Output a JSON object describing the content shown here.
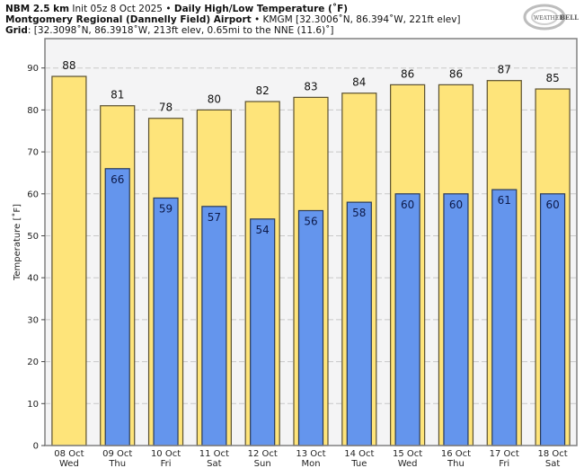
{
  "header": {
    "model": "NBM 2.5 km",
    "init": "Init 05z 8 Oct 2025",
    "sep": " • ",
    "product": "Daily High/Low Temperature (˚F)",
    "station_name": "Montgomery Regional (Dannelly Field) Airport",
    "station_info": "KMGM [32.3006˚N, 86.394˚W, 221ft elev]",
    "grid_label": "Grid",
    "grid_info": ": [32.3098˚N, 86.3918˚W, 213ft elev, 0.65mi to the NNE (11.6)˚]"
  },
  "logo": {
    "text_a": "WEATHER",
    "text_b": "BELL",
    "icon": "weatherbell-swirl-logo"
  },
  "colors": {
    "high_fill": "#fee47a",
    "low_fill": "#6495ed",
    "bar_stroke": "#5a5030",
    "low_stroke": "#2a3a5a",
    "plot_bg": "#f4f4f5",
    "grid": "#c8c8c8",
    "frame": "#808080"
  },
  "chart_data": {
    "type": "bar",
    "title": "Daily High/Low Temperature (˚F)",
    "xlabel": "",
    "ylabel": "Temperature [˚F]",
    "ylim": [
      0,
      97
    ],
    "yticks": [
      0,
      10,
      20,
      30,
      40,
      50,
      60,
      70,
      80,
      90
    ],
    "grid": true,
    "categories": [
      {
        "date": "08 Oct",
        "day": "Wed"
      },
      {
        "date": "09 Oct",
        "day": "Thu"
      },
      {
        "date": "10 Oct",
        "day": "Fri"
      },
      {
        "date": "11 Oct",
        "day": "Sat"
      },
      {
        "date": "12 Oct",
        "day": "Sun"
      },
      {
        "date": "13 Oct",
        "day": "Mon"
      },
      {
        "date": "14 Oct",
        "day": "Tue"
      },
      {
        "date": "15 Oct",
        "day": "Wed"
      },
      {
        "date": "16 Oct",
        "day": "Thu"
      },
      {
        "date": "17 Oct",
        "day": "Fri"
      },
      {
        "date": "18 Oct",
        "day": "Sat"
      }
    ],
    "series": [
      {
        "name": "High",
        "values": [
          88,
          81,
          78,
          80,
          82,
          83,
          84,
          86,
          86,
          87,
          85
        ]
      },
      {
        "name": "Low",
        "values": [
          null,
          66,
          59,
          57,
          54,
          56,
          58,
          60,
          60,
          61,
          60
        ]
      }
    ]
  }
}
